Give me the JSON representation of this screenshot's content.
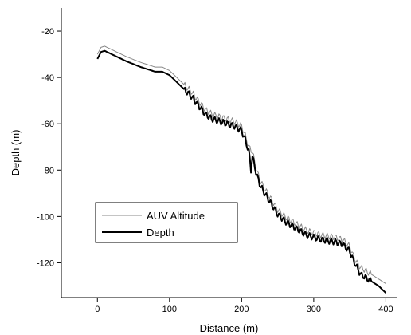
{
  "chart_data": {
    "type": "line",
    "title": "",
    "xlabel": "Distance (m)",
    "ylabel": "Depth (m)",
    "xlim": [
      -50,
      415
    ],
    "ylim": [
      -135,
      -10
    ],
    "x_ticks": [
      0,
      100,
      200,
      300,
      400
    ],
    "y_ticks": [
      -20,
      -40,
      -60,
      -80,
      -100,
      -120
    ],
    "grid": false,
    "legend_position": "lower-left",
    "series": [
      {
        "name": "AUV Altitude",
        "color": "#888888",
        "x": [
          0,
          5,
          10,
          20,
          40,
          60,
          80,
          90,
          100,
          110,
          120,
          130,
          140,
          150,
          160,
          170,
          180,
          190,
          200,
          205,
          210,
          215,
          220,
          225,
          230,
          240,
          250,
          260,
          270,
          280,
          290,
          300,
          310,
          320,
          330,
          340,
          350,
          355,
          360,
          365,
          370,
          380,
          390,
          400
        ],
        "y": [
          -30,
          -27,
          -26.5,
          -28,
          -31,
          -33.5,
          -35.5,
          -35.5,
          -37,
          -40,
          -43,
          -46,
          -50,
          -54,
          -56,
          -57,
          -58,
          -59,
          -61,
          -65,
          -70,
          -72,
          -79,
          -84,
          -87,
          -92,
          -97,
          -100,
          -102,
          -104,
          -106,
          -107,
          -108,
          -108.5,
          -109,
          -110,
          -113,
          -117,
          -120,
          -122,
          -123,
          -125,
          -127,
          -129
        ]
      },
      {
        "name": "Depth",
        "color": "#000000",
        "x": [
          0,
          5,
          10,
          20,
          40,
          60,
          80,
          90,
          100,
          110,
          120,
          130,
          140,
          150,
          160,
          170,
          180,
          190,
          200,
          205,
          210,
          213,
          215,
          220,
          225,
          230,
          240,
          250,
          260,
          270,
          280,
          290,
          300,
          310,
          320,
          330,
          340,
          350,
          355,
          360,
          365,
          370,
          380,
          390,
          400
        ],
        "y": [
          -32,
          -29,
          -28.5,
          -30,
          -33,
          -35.5,
          -37.5,
          -37.5,
          -39,
          -42,
          -45,
          -48,
          -52,
          -56,
          -58,
          -59,
          -60,
          -61,
          -63,
          -67,
          -72,
          -80,
          -74,
          -81,
          -86,
          -89,
          -94,
          -99,
          -102,
          -104,
          -106,
          -108,
          -109,
          -110,
          -110.5,
          -111,
          -112,
          -115,
          -119,
          -122,
          -125,
          -126,
          -128,
          -130,
          -133
        ]
      }
    ]
  }
}
